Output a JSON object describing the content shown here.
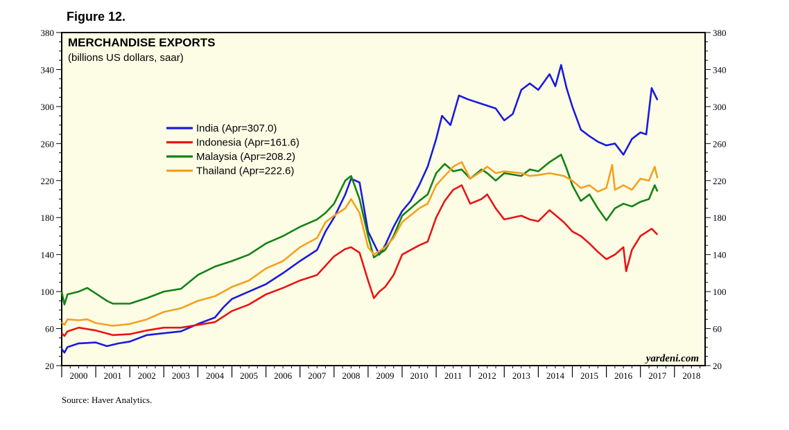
{
  "figure_label": "Figure 12.",
  "source": "Source: Haver Analytics.",
  "watermark": "yardeni.com",
  "colors": {
    "background": "#fdfde6",
    "India": "#1a1adc",
    "Indonesia": "#e81414",
    "Malaysia": "#138213",
    "Thailand": "#f5a01e"
  },
  "chart_data": {
    "type": "line",
    "title": "MERCHANDISE EXPORTS",
    "subtitle": "(billions US dollars, saar)",
    "xlabel": "",
    "ylabel": "",
    "xlim": [
      2000,
      2018.9
    ],
    "ylim": [
      20,
      380
    ],
    "y_ticks": [
      20,
      60,
      100,
      140,
      180,
      220,
      260,
      300,
      340,
      380
    ],
    "year_labels": [
      "2000",
      "2001",
      "2002",
      "2003",
      "2004",
      "2005",
      "2006",
      "2007",
      "2008",
      "2009",
      "2010",
      "2011",
      "2012",
      "2013",
      "2014",
      "2015",
      "2016",
      "2017",
      "2018"
    ],
    "grid": false,
    "legend_position": "upper-left-center",
    "series": [
      {
        "name": "India",
        "legend": "India (Apr=307.0)",
        "color": "#1a1adc",
        "points": [
          [
            2000.0,
            38
          ],
          [
            2000.08,
            34
          ],
          [
            2000.17,
            40
          ],
          [
            2000.5,
            44
          ],
          [
            2001.0,
            45
          ],
          [
            2001.33,
            41
          ],
          [
            2001.67,
            44
          ],
          [
            2002.0,
            46
          ],
          [
            2002.5,
            53
          ],
          [
            2003.0,
            55
          ],
          [
            2003.5,
            57
          ],
          [
            2004.0,
            65
          ],
          [
            2004.5,
            72
          ],
          [
            2004.75,
            83
          ],
          [
            2005.0,
            92
          ],
          [
            2005.5,
            100
          ],
          [
            2006.0,
            108
          ],
          [
            2006.5,
            120
          ],
          [
            2007.0,
            133
          ],
          [
            2007.5,
            145
          ],
          [
            2007.75,
            165
          ],
          [
            2008.0,
            180
          ],
          [
            2008.33,
            205
          ],
          [
            2008.5,
            222
          ],
          [
            2008.75,
            218
          ],
          [
            2009.0,
            165
          ],
          [
            2009.33,
            140
          ],
          [
            2009.5,
            150
          ],
          [
            2009.75,
            170
          ],
          [
            2010.0,
            187
          ],
          [
            2010.25,
            198
          ],
          [
            2010.5,
            215
          ],
          [
            2010.75,
            235
          ],
          [
            2011.0,
            265
          ],
          [
            2011.17,
            290
          ],
          [
            2011.42,
            280
          ],
          [
            2011.67,
            312
          ],
          [
            2011.92,
            308
          ],
          [
            2012.33,
            303
          ],
          [
            2012.75,
            298
          ],
          [
            2013.0,
            285
          ],
          [
            2013.25,
            292
          ],
          [
            2013.5,
            318
          ],
          [
            2013.75,
            325
          ],
          [
            2014.0,
            318
          ],
          [
            2014.33,
            335
          ],
          [
            2014.5,
            322
          ],
          [
            2014.67,
            345
          ],
          [
            2014.83,
            320
          ],
          [
            2015.0,
            300
          ],
          [
            2015.25,
            275
          ],
          [
            2015.5,
            268
          ],
          [
            2015.75,
            262
          ],
          [
            2016.0,
            258
          ],
          [
            2016.25,
            260
          ],
          [
            2016.5,
            248
          ],
          [
            2016.75,
            265
          ],
          [
            2017.0,
            272
          ],
          [
            2017.17,
            270
          ],
          [
            2017.33,
            320
          ],
          [
            2017.5,
            307
          ]
        ]
      },
      {
        "name": "Indonesia",
        "legend": "Indonesia (Apr=161.6)",
        "color": "#e81414",
        "points": [
          [
            2000.0,
            55
          ],
          [
            2000.08,
            52
          ],
          [
            2000.17,
            57
          ],
          [
            2000.5,
            61
          ],
          [
            2001.0,
            58
          ],
          [
            2001.5,
            53
          ],
          [
            2002.0,
            54
          ],
          [
            2002.5,
            58
          ],
          [
            2003.0,
            61
          ],
          [
            2003.5,
            61
          ],
          [
            2004.0,
            64
          ],
          [
            2004.5,
            67
          ],
          [
            2005.0,
            79
          ],
          [
            2005.5,
            86
          ],
          [
            2006.0,
            97
          ],
          [
            2006.5,
            104
          ],
          [
            2007.0,
            112
          ],
          [
            2007.5,
            118
          ],
          [
            2008.0,
            138
          ],
          [
            2008.33,
            146
          ],
          [
            2008.5,
            148
          ],
          [
            2008.75,
            142
          ],
          [
            2009.0,
            112
          ],
          [
            2009.17,
            93
          ],
          [
            2009.33,
            100
          ],
          [
            2009.5,
            105
          ],
          [
            2009.75,
            118
          ],
          [
            2010.0,
            140
          ],
          [
            2010.5,
            150
          ],
          [
            2010.75,
            154
          ],
          [
            2011.0,
            180
          ],
          [
            2011.25,
            198
          ],
          [
            2011.5,
            210
          ],
          [
            2011.75,
            215
          ],
          [
            2012.0,
            195
          ],
          [
            2012.33,
            200
          ],
          [
            2012.5,
            205
          ],
          [
            2012.75,
            190
          ],
          [
            2013.0,
            178
          ],
          [
            2013.5,
            182
          ],
          [
            2013.75,
            178
          ],
          [
            2014.0,
            176
          ],
          [
            2014.33,
            188
          ],
          [
            2014.75,
            175
          ],
          [
            2015.0,
            165
          ],
          [
            2015.25,
            160
          ],
          [
            2015.5,
            152
          ],
          [
            2015.75,
            143
          ],
          [
            2016.0,
            135
          ],
          [
            2016.25,
            140
          ],
          [
            2016.5,
            148
          ],
          [
            2016.58,
            122
          ],
          [
            2016.75,
            145
          ],
          [
            2017.0,
            160
          ],
          [
            2017.33,
            168
          ],
          [
            2017.5,
            161.6
          ]
        ]
      },
      {
        "name": "Malaysia",
        "legend": "Malaysia (Apr=208.2)",
        "color": "#138213",
        "points": [
          [
            2000.0,
            100
          ],
          [
            2000.08,
            86
          ],
          [
            2000.17,
            97
          ],
          [
            2000.5,
            100
          ],
          [
            2000.75,
            104
          ],
          [
            2001.0,
            98
          ],
          [
            2001.33,
            90
          ],
          [
            2001.5,
            87
          ],
          [
            2002.0,
            87
          ],
          [
            2002.5,
            93
          ],
          [
            2003.0,
            100
          ],
          [
            2003.5,
            103
          ],
          [
            2004.0,
            118
          ],
          [
            2004.5,
            127
          ],
          [
            2005.0,
            133
          ],
          [
            2005.5,
            140
          ],
          [
            2006.0,
            152
          ],
          [
            2006.5,
            160
          ],
          [
            2007.0,
            170
          ],
          [
            2007.5,
            178
          ],
          [
            2007.75,
            185
          ],
          [
            2008.0,
            195
          ],
          [
            2008.33,
            220
          ],
          [
            2008.5,
            225
          ],
          [
            2008.75,
            200
          ],
          [
            2009.0,
            160
          ],
          [
            2009.17,
            137
          ],
          [
            2009.5,
            145
          ],
          [
            2009.75,
            160
          ],
          [
            2010.0,
            182
          ],
          [
            2010.5,
            198
          ],
          [
            2010.75,
            205
          ],
          [
            2011.0,
            228
          ],
          [
            2011.25,
            238
          ],
          [
            2011.5,
            230
          ],
          [
            2011.75,
            232
          ],
          [
            2012.0,
            222
          ],
          [
            2012.33,
            232
          ],
          [
            2012.5,
            228
          ],
          [
            2012.75,
            220
          ],
          [
            2013.0,
            228
          ],
          [
            2013.5,
            225
          ],
          [
            2013.75,
            232
          ],
          [
            2014.0,
            230
          ],
          [
            2014.33,
            240
          ],
          [
            2014.67,
            248
          ],
          [
            2014.83,
            233
          ],
          [
            2015.0,
            215
          ],
          [
            2015.25,
            198
          ],
          [
            2015.5,
            205
          ],
          [
            2015.75,
            190
          ],
          [
            2016.0,
            177
          ],
          [
            2016.25,
            190
          ],
          [
            2016.5,
            195
          ],
          [
            2016.75,
            192
          ],
          [
            2017.0,
            197
          ],
          [
            2017.25,
            200
          ],
          [
            2017.42,
            215
          ],
          [
            2017.5,
            208.2
          ]
        ]
      },
      {
        "name": "Thailand",
        "legend": "Thailand (Apr=222.6)",
        "color": "#f5a01e",
        "points": [
          [
            2000.0,
            67
          ],
          [
            2000.08,
            64
          ],
          [
            2000.17,
            70
          ],
          [
            2000.5,
            69
          ],
          [
            2000.75,
            70
          ],
          [
            2001.0,
            66
          ],
          [
            2001.5,
            63
          ],
          [
            2002.0,
            65
          ],
          [
            2002.5,
            70
          ],
          [
            2003.0,
            78
          ],
          [
            2003.5,
            82
          ],
          [
            2004.0,
            90
          ],
          [
            2004.5,
            95
          ],
          [
            2005.0,
            105
          ],
          [
            2005.5,
            112
          ],
          [
            2006.0,
            125
          ],
          [
            2006.5,
            133
          ],
          [
            2007.0,
            148
          ],
          [
            2007.5,
            158
          ],
          [
            2007.75,
            175
          ],
          [
            2008.0,
            182
          ],
          [
            2008.33,
            190
          ],
          [
            2008.5,
            200
          ],
          [
            2008.75,
            185
          ],
          [
            2009.0,
            148
          ],
          [
            2009.17,
            140
          ],
          [
            2009.5,
            148
          ],
          [
            2009.75,
            158
          ],
          [
            2010.0,
            175
          ],
          [
            2010.5,
            190
          ],
          [
            2010.75,
            195
          ],
          [
            2011.0,
            215
          ],
          [
            2011.25,
            225
          ],
          [
            2011.5,
            235
          ],
          [
            2011.75,
            240
          ],
          [
            2012.0,
            222
          ],
          [
            2012.33,
            230
          ],
          [
            2012.5,
            235
          ],
          [
            2012.75,
            228
          ],
          [
            2013.0,
            230
          ],
          [
            2013.5,
            228
          ],
          [
            2013.75,
            225
          ],
          [
            2014.0,
            226
          ],
          [
            2014.33,
            228
          ],
          [
            2014.75,
            225
          ],
          [
            2015.0,
            220
          ],
          [
            2015.25,
            212
          ],
          [
            2015.5,
            215
          ],
          [
            2015.75,
            208
          ],
          [
            2016.0,
            212
          ],
          [
            2016.17,
            237
          ],
          [
            2016.25,
            210
          ],
          [
            2016.5,
            215
          ],
          [
            2016.75,
            210
          ],
          [
            2017.0,
            222
          ],
          [
            2017.25,
            220
          ],
          [
            2017.42,
            235
          ],
          [
            2017.5,
            222.6
          ]
        ]
      }
    ]
  }
}
